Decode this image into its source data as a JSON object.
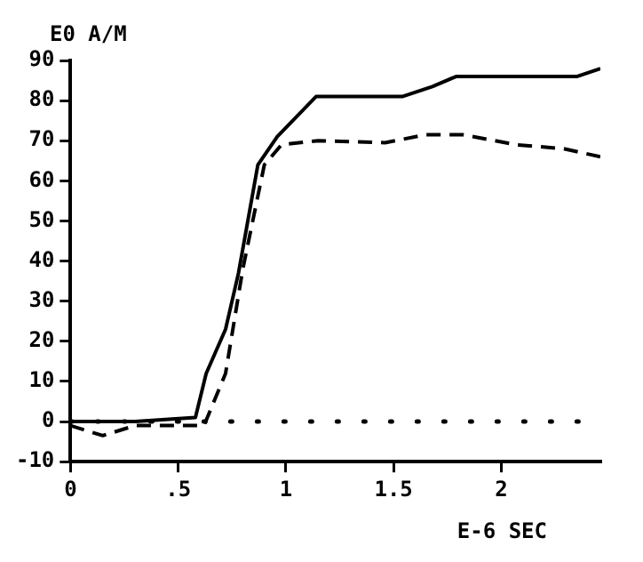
{
  "chart_data": {
    "type": "line",
    "ylabel": "E0 A/M",
    "xlabel": "E-6 SEC",
    "xlim": [
      0,
      2.46
    ],
    "xticks": [
      0,
      {
        "value": 0.5,
        "label": ".5"
      },
      1,
      1.5,
      2
    ],
    "ylim": [
      -10,
      90
    ],
    "yticks": [
      -10,
      0,
      10,
      20,
      30,
      40,
      50,
      60,
      70,
      80,
      90
    ],
    "grid": false,
    "legend": false,
    "marker": "none",
    "ref_lines": [
      {
        "axis": "y",
        "value": 0,
        "color": "#000000",
        "line_style": "dotted"
      }
    ],
    "series": [
      {
        "color": "#000000",
        "line_style": "solid",
        "x": [
          0,
          0.3,
          0.58,
          0.63,
          0.72,
          0.78,
          0.87,
          0.96,
          1.14,
          1.54,
          1.68,
          1.79,
          2.35,
          2.46
        ],
        "values": [
          0,
          0,
          1,
          12,
          23,
          37,
          64,
          71,
          81,
          81,
          83.5,
          86,
          86,
          88
        ]
      },
      {
        "color": "#000000",
        "line_style": "dashed",
        "x": [
          0,
          0.15,
          0.3,
          0.62,
          0.72,
          0.8,
          0.9,
          0.98,
          1.15,
          1.46,
          1.65,
          1.82,
          2.07,
          2.29,
          2.46
        ],
        "values": [
          -1,
          -3.5,
          -1,
          -1,
          12,
          38,
          64,
          69,
          70,
          69.5,
          71.5,
          71.5,
          69,
          68,
          66
        ]
      }
    ]
  }
}
